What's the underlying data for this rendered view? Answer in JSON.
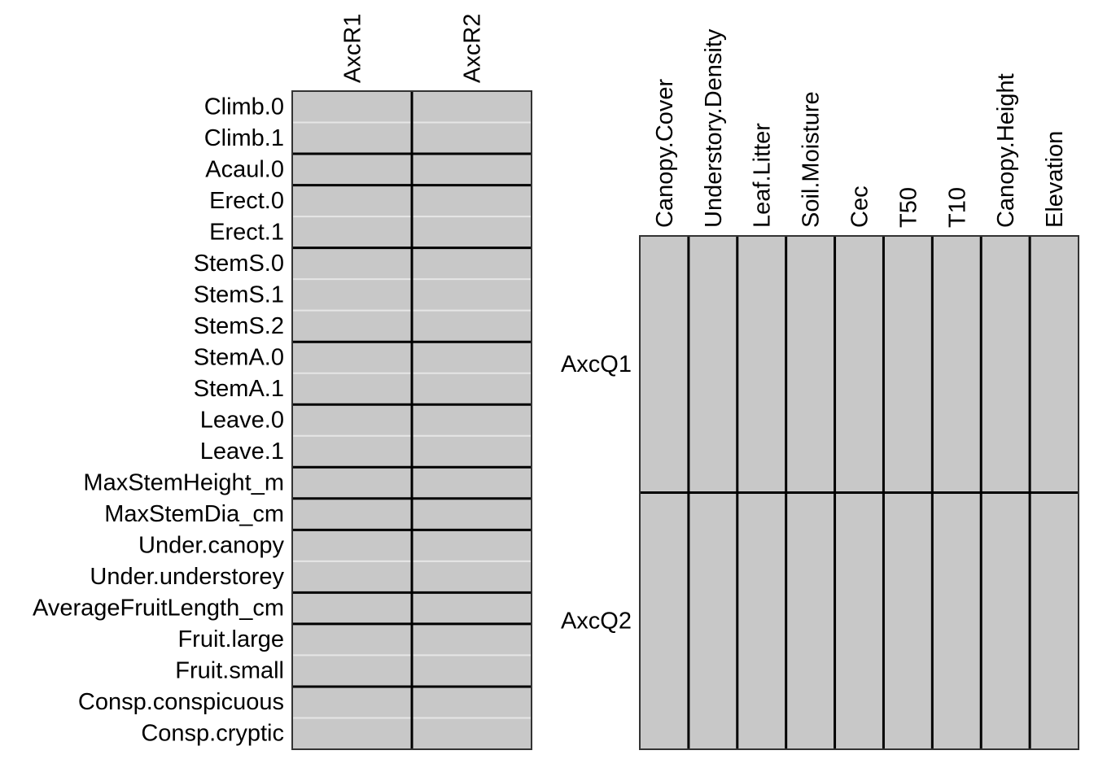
{
  "chart_data": [
    {
      "type": "heatmap",
      "title": "",
      "columns": [
        "AxcR1",
        "AxcR2"
      ],
      "rows": [
        "Climb.0",
        "Climb.1",
        "Acaul.0",
        "Erect.0",
        "Erect.1",
        "StemS.0",
        "StemS.1",
        "StemS.2",
        "StemA.0",
        "StemA.1",
        "Leave.0",
        "Leave.1",
        "MaxStemHeight_m",
        "MaxStemDia_cm",
        "Under.canopy",
        "Under.understorey",
        "AverageFruitLength_cm",
        "Fruit.large",
        "Fruit.small",
        "Consp.conspicuous",
        "Consp.cryptic"
      ],
      "row_groups": [
        [
          "Climb.0",
          "Climb.1"
        ],
        [
          "Acaul.0"
        ],
        [
          "Erect.0",
          "Erect.1"
        ],
        [
          "StemS.0",
          "StemS.1",
          "StemS.2"
        ],
        [
          "StemA.0",
          "StemA.1"
        ],
        [
          "Leave.0",
          "Leave.1"
        ],
        [
          "MaxStemHeight_m"
        ],
        [
          "MaxStemDia_cm"
        ],
        [
          "Under.canopy",
          "Under.understorey"
        ],
        [
          "AverageFruitLength_cm"
        ],
        [
          "Fruit.large",
          "Fruit.small"
        ],
        [
          "Consp.conspicuous",
          "Consp.cryptic"
        ]
      ],
      "cell_state": "not significant",
      "colors": {
        "cell": "#c8c8c8",
        "row_separator": "#e6e6e6",
        "group_border": "#000000"
      }
    },
    {
      "type": "heatmap",
      "title": "",
      "columns": [
        "Canopy.Cover",
        "Understory.Density",
        "Leaf.Litter",
        "Soil.Moisture",
        "Cec",
        "T50",
        "T10",
        "Canopy.Height",
        "Elevation"
      ],
      "rows": [
        "AxcQ1",
        "AxcQ2"
      ],
      "cell_state": "not significant",
      "colors": {
        "cell": "#c8c8c8",
        "group_border": "#000000"
      }
    }
  ]
}
